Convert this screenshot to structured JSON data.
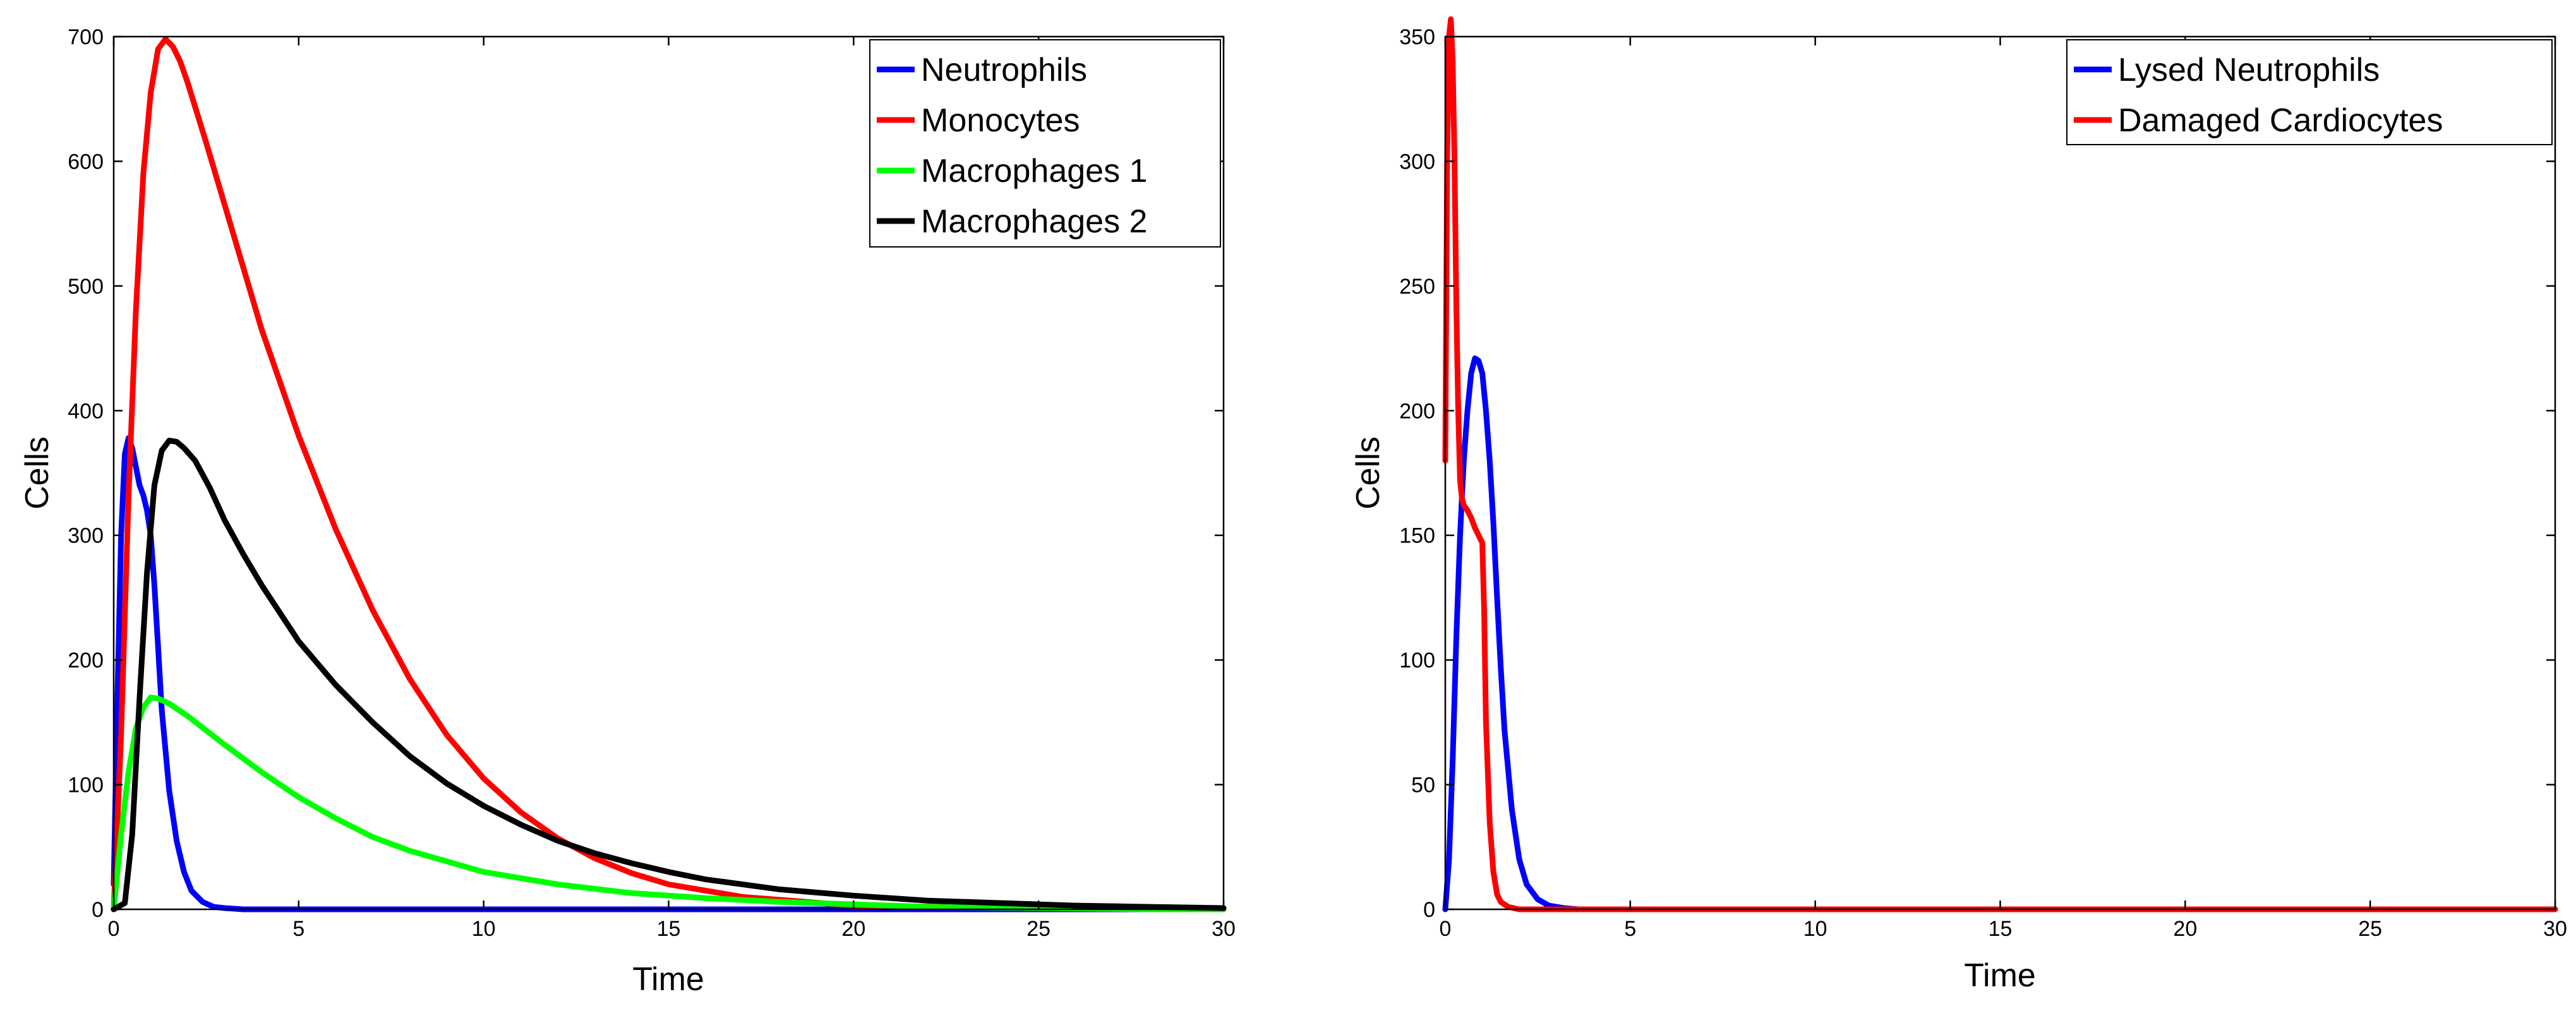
{
  "chart_data": [
    {
      "type": "line",
      "title": "",
      "xlabel": "Time",
      "ylabel": "Cells",
      "xlim": [
        0,
        30
      ],
      "ylim": [
        0,
        700
      ],
      "xticks": [
        0,
        5,
        10,
        15,
        20,
        25,
        30
      ],
      "yticks": [
        0,
        100,
        200,
        300,
        400,
        500,
        600,
        700
      ],
      "grid": false,
      "legend_position": "top-right",
      "series": [
        {
          "name": "Neutrophils",
          "color": "#0000ff",
          "x": [
            0,
            0.1,
            0.2,
            0.3,
            0.4,
            0.5,
            0.6,
            0.7,
            0.8,
            0.9,
            1.0,
            1.1,
            1.2,
            1.3,
            1.5,
            1.7,
            1.9,
            2.1,
            2.4,
            2.7,
            3.0,
            3.5,
            5,
            10,
            15,
            20,
            25,
            30
          ],
          "y": [
            20,
            170,
            300,
            365,
            378,
            370,
            355,
            340,
            332,
            320,
            300,
            260,
            210,
            160,
            95,
            55,
            30,
            15,
            6,
            2,
            1,
            0,
            0,
            0,
            0,
            0,
            0,
            0
          ]
        },
        {
          "name": "Monocytes",
          "color": "#ff0000",
          "x": [
            0,
            0.2,
            0.4,
            0.6,
            0.8,
            1.0,
            1.2,
            1.4,
            1.6,
            1.8,
            2.0,
            2.5,
            3,
            3.5,
            4,
            5,
            6,
            7,
            8,
            9,
            10,
            11,
            12,
            13,
            14,
            15,
            17,
            20,
            25,
            30
          ],
          "y": [
            0,
            140,
            330,
            480,
            590,
            655,
            690,
            698,
            692,
            680,
            663,
            615,
            565,
            515,
            465,
            380,
            305,
            240,
            185,
            140,
            105,
            78,
            57,
            41,
            29,
            20,
            10,
            3,
            1,
            0
          ]
        },
        {
          "name": "Macrophages 1",
          "color": "#00ff00",
          "x": [
            0,
            0.2,
            0.4,
            0.6,
            0.8,
            1.0,
            1.2,
            1.5,
            2,
            3,
            4,
            5,
            6,
            7,
            8,
            10,
            12,
            14,
            16,
            18,
            20,
            22,
            25,
            28,
            30
          ],
          "y": [
            0,
            60,
            110,
            145,
            162,
            170,
            169,
            165,
            155,
            132,
            110,
            90,
            73,
            58,
            47,
            30,
            20,
            13,
            9,
            6,
            4,
            2,
            1,
            0,
            0
          ]
        },
        {
          "name": "Macrophages 2",
          "color": "#000000",
          "x": [
            0,
            0.3,
            0.5,
            0.7,
            0.9,
            1.1,
            1.3,
            1.5,
            1.7,
            1.9,
            2.2,
            2.6,
            3,
            3.5,
            4,
            5,
            6,
            7,
            8,
            9,
            10,
            11,
            12,
            13,
            14,
            15,
            16,
            18,
            20,
            22,
            24,
            26,
            28,
            30
          ],
          "y": [
            0,
            5,
            60,
            170,
            270,
            340,
            368,
            376,
            375,
            370,
            360,
            338,
            312,
            285,
            260,
            215,
            180,
            150,
            123,
            101,
            83,
            68,
            55,
            45,
            37,
            30,
            24,
            16,
            11,
            7,
            5,
            3,
            2,
            1
          ]
        }
      ]
    },
    {
      "type": "line",
      "title": "",
      "xlabel": "Time",
      "ylabel": "Cells",
      "xlim": [
        0,
        30
      ],
      "ylim": [
        0,
        350
      ],
      "xticks": [
        0,
        5,
        10,
        15,
        20,
        25,
        30
      ],
      "yticks": [
        0,
        50,
        100,
        150,
        200,
        250,
        300,
        350
      ],
      "grid": false,
      "legend_position": "top-right",
      "series": [
        {
          "name": "Lysed Neutrophils",
          "color": "#0000ff",
          "x": [
            0,
            0.1,
            0.2,
            0.3,
            0.4,
            0.5,
            0.6,
            0.7,
            0.8,
            0.9,
            1.0,
            1.1,
            1.2,
            1.3,
            1.4,
            1.5,
            1.6,
            1.8,
            2.0,
            2.2,
            2.5,
            2.8,
            3.2,
            3.6,
            5,
            10,
            15,
            20,
            25,
            30
          ],
          "y": [
            0,
            20,
            60,
            110,
            150,
            180,
            200,
            215,
            221,
            220,
            215,
            200,
            180,
            155,
            125,
            97,
            72,
            40,
            20,
            10,
            4,
            1.5,
            0.5,
            0,
            0,
            0,
            0,
            0,
            0,
            0
          ]
        },
        {
          "name": "Damaged Cardiocytes",
          "color": "#ff0000",
          "x": [
            0,
            0.05,
            0.1,
            0.15,
            0.2,
            0.25,
            0.3,
            0.35,
            0.4,
            0.45,
            0.5,
            0.6,
            0.7,
            0.8,
            0.9,
            1.0,
            1.05,
            1.1,
            1.2,
            1.3,
            1.4,
            1.5,
            1.7,
            2.0,
            5,
            10,
            15,
            20,
            25,
            30
          ],
          "y": [
            180,
            300,
            350,
            357,
            340,
            300,
            240,
            200,
            172,
            165,
            162,
            160,
            157,
            153,
            150,
            147,
            120,
            75,
            35,
            15,
            6,
            3,
            1,
            0,
            0,
            0,
            0,
            0,
            0,
            0
          ]
        }
      ]
    }
  ]
}
